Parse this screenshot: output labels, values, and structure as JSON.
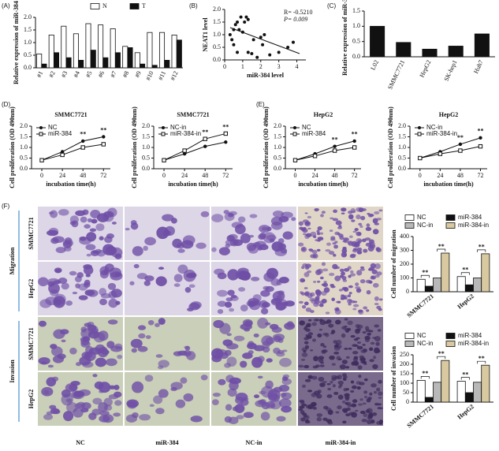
{
  "chart_data": [
    {
      "type": "bar",
      "label": "(A)",
      "ylabel": "Relative expression of miR-384",
      "categories": [
        "#1",
        "#2",
        "#3",
        "#4",
        "#5",
        "#6",
        "#7",
        "#8",
        "#9",
        "#10",
        "#11",
        "#12"
      ],
      "series": [
        {
          "name": "N",
          "color": "#ffffff",
          "values": [
            0.55,
            1.3,
            1.65,
            1.35,
            1.75,
            1.7,
            1.55,
            0.85,
            0.6,
            1.4,
            1.4,
            1.3
          ]
        },
        {
          "name": "T",
          "color": "#111111",
          "values": [
            0.15,
            0.6,
            0.4,
            0.3,
            0.7,
            0.4,
            0.6,
            0.8,
            0.15,
            0.1,
            0.3,
            1.1
          ]
        }
      ],
      "ylim": [
        0,
        2
      ],
      "yticks": [
        {
          "value": 0,
          "label": "0.0"
        },
        0.5,
        {
          "value": 1,
          "label": "1.0"
        },
        1.5,
        {
          "value": 2,
          "label": "2.0"
        }
      ]
    },
    {
      "type": "scatter",
      "label": "(B)",
      "xlabel": "miR-384 level",
      "ylabel": "NEAT1 level",
      "color": "#111111",
      "x": [
        0.3,
        0.4,
        0.5,
        0.6,
        0.7,
        0.8,
        0.9,
        1.0,
        1.1,
        1.2,
        1.3,
        0.5,
        0.7,
        1.3,
        1.5,
        1.8,
        2.0,
        2.1,
        2.2,
        2.5,
        3.0,
        3.5,
        3.8,
        1.6
      ],
      "values": [
        1.0,
        0.8,
        1.2,
        1.4,
        1.5,
        1.2,
        1.7,
        1.1,
        1.5,
        1.7,
        1.6,
        0.6,
        0.3,
        0.3,
        0.25,
        0.1,
        0.9,
        0.6,
        1.0,
        0.2,
        0.3,
        0.5,
        0.7,
        0.8
      ],
      "xlim": [
        0,
        4.5
      ],
      "xticks": [
        0,
        1,
        2,
        3,
        4
      ],
      "ylim": [
        0,
        2
      ],
      "yticks": [
        {
          "value": 0,
          "label": "0.0"
        },
        0.5,
        {
          "value": 1,
          "label": "1.0"
        },
        1.5,
        {
          "value": 2,
          "label": "2.0"
        }
      ],
      "annotations": [
        "R= -0.5210",
        "P= 0.009"
      ]
    },
    {
      "type": "bar",
      "label": "(C)",
      "ylabel": "Relative expression of miR-384",
      "color": "#111111",
      "categories": [
        "L02",
        "SMMC7721",
        "HepG2",
        "SK-hep1",
        "Huh7"
      ],
      "values": [
        1.0,
        0.47,
        0.25,
        0.35,
        0.75
      ],
      "ylim": [
        0,
        1.5
      ],
      "yticks": [
        {
          "value": 0,
          "label": "0.0"
        },
        0.5,
        {
          "value": 1,
          "label": "1.0"
        },
        1.5
      ]
    },
    {
      "type": "line",
      "label": "(D)",
      "title": "SMMC7721",
      "xlabel": "incubation time(h)",
      "ylabel": "Cell proliferation (OD 490nm)",
      "x": [
        0,
        24,
        48,
        72
      ],
      "xlim": [
        -12,
        80
      ],
      "xticks": [
        0,
        24,
        48,
        72
      ],
      "ylim": [
        0,
        2
      ],
      "yticks": [
        {
          "value": 0,
          "label": "0.0"
        },
        0.5,
        {
          "value": 1,
          "label": "1.0"
        },
        1.5,
        {
          "value": 2,
          "label": "2.0"
        }
      ],
      "series": [
        {
          "name": "NC",
          "color": "#111111",
          "marker": "circle",
          "values": [
            0.4,
            0.8,
            1.3,
            1.5
          ]
        },
        {
          "name": "miR-384",
          "color": "#111111",
          "marker": "square",
          "values": [
            0.4,
            0.65,
            1.0,
            1.15
          ]
        }
      ],
      "annotations": [
        {
          "x": 48,
          "text": "**"
        },
        {
          "x": 72,
          "text": "**"
        }
      ]
    },
    {
      "type": "line",
      "title": "SMMC7721",
      "xlabel": "incubation time(h)",
      "ylabel": "Cell proliferation (OD 490nm)",
      "x": [
        0,
        24,
        48,
        72
      ],
      "xlim": [
        -12,
        80
      ],
      "xticks": [
        0,
        24,
        48,
        72
      ],
      "ylim": [
        0,
        2
      ],
      "yticks": [
        {
          "value": 0,
          "label": "0.0"
        },
        0.5,
        {
          "value": 1,
          "label": "1.0"
        },
        1.5,
        {
          "value": 2,
          "label": "2.0"
        }
      ],
      "series": [
        {
          "name": "NC-in",
          "color": "#111111",
          "marker": "circle",
          "values": [
            0.4,
            0.7,
            1.05,
            1.25
          ]
        },
        {
          "name": "miR-384-in",
          "color": "#111111",
          "marker": "square",
          "values": [
            0.4,
            0.85,
            1.4,
            1.65
          ]
        }
      ],
      "annotations": [
        {
          "x": 48,
          "text": "**"
        },
        {
          "x": 72,
          "text": "**"
        }
      ]
    },
    {
      "type": "line",
      "label": "(E)",
      "title": "HepG2",
      "xlabel": "incubation time(h)",
      "ylabel": "Cell proliferation (OD 490nm)",
      "x": [
        0,
        24,
        48,
        72
      ],
      "xlim": [
        -12,
        80
      ],
      "xticks": [
        0,
        24,
        48,
        72
      ],
      "ylim": [
        0,
        2
      ],
      "yticks": [
        {
          "value": 0,
          "label": "0.0"
        },
        0.5,
        {
          "value": 1,
          "label": "1.0"
        },
        1.5,
        {
          "value": 2,
          "label": "2.0"
        }
      ],
      "series": [
        {
          "name": "NC",
          "color": "#111111",
          "marker": "circle",
          "values": [
            0.4,
            0.7,
            1.05,
            1.3
          ]
        },
        {
          "name": "miR-384",
          "color": "#111111",
          "marker": "square",
          "values": [
            0.4,
            0.6,
            0.85,
            1.0
          ]
        }
      ],
      "annotations": [
        {
          "x": 48,
          "text": "**"
        },
        {
          "x": 72,
          "text": "**"
        }
      ]
    },
    {
      "type": "line",
      "title": "HepG2",
      "xlabel": "incubation time(h)",
      "ylabel": "Cell proliferation (OD 490nm)",
      "x": [
        0,
        24,
        48,
        72
      ],
      "xlim": [
        -12,
        80
      ],
      "xticks": [
        0,
        24,
        48,
        72
      ],
      "ylim": [
        0,
        2
      ],
      "yticks": [
        {
          "value": 0,
          "label": "0.0"
        },
        0.5,
        {
          "value": 1,
          "label": "1.0"
        },
        1.5,
        {
          "value": 2,
          "label": "2.0"
        }
      ],
      "series": [
        {
          "name": "NC-in",
          "color": "#111111",
          "marker": "circle",
          "values": [
            0.5,
            0.8,
            1.15,
            1.45
          ]
        },
        {
          "name": "miR-384-in",
          "color": "#111111",
          "marker": "square",
          "values": [
            0.5,
            0.7,
            0.85,
            1.05
          ]
        }
      ],
      "annotations": [
        {
          "x": 48,
          "text": "**"
        },
        {
          "x": 72,
          "text": "**"
        }
      ]
    },
    {
      "type": "bar",
      "ylabel": "Cell number of migration",
      "categories": [
        "SMMC7721",
        "HepG2"
      ],
      "series": [
        {
          "name": "NC",
          "color": "#ffffff",
          "values": [
            90,
            110
          ]
        },
        {
          "name": "miR-384",
          "color": "#111111",
          "values": [
            40,
            50
          ]
        },
        {
          "name": "NC-in",
          "color": "#b8b8b8",
          "values": [
            100,
            100
          ]
        },
        {
          "name": "miR-384-in",
          "color": "#d9c9a0",
          "values": [
            280,
            275
          ]
        }
      ],
      "ylim": [
        0,
        400
      ],
      "yticks": [
        0,
        100,
        200,
        300,
        400
      ],
      "annotations": [
        "**",
        "**",
        "**",
        "**"
      ]
    },
    {
      "type": "bar",
      "ylabel": "Cell number of invasion",
      "categories": [
        "SMMC7721",
        "HepG2"
      ],
      "series": [
        {
          "name": "NC",
          "color": "#ffffff",
          "values": [
            115,
            110
          ]
        },
        {
          "name": "miR-384",
          "color": "#111111",
          "values": [
            25,
            50
          ]
        },
        {
          "name": "NC-in",
          "color": "#b8b8b8",
          "values": [
            105,
            105
          ]
        },
        {
          "name": "miR-384-in",
          "color": "#d9c9a0",
          "values": [
            220,
            195
          ]
        }
      ],
      "ylim": [
        0,
        250
      ],
      "yticks": [
        0,
        50,
        100,
        150,
        200,
        250
      ],
      "annotations": [
        "**",
        "**",
        "**",
        "**"
      ]
    }
  ],
  "images": {
    "label": "(F)",
    "columns": [
      "NC",
      "miR-384",
      "NC-in",
      "miR-384-in"
    ],
    "rows": [
      "SMMC7721",
      "HepG2",
      "SMMC7721",
      "HepG2"
    ],
    "groups": [
      "Migration",
      "Invasion"
    ]
  }
}
